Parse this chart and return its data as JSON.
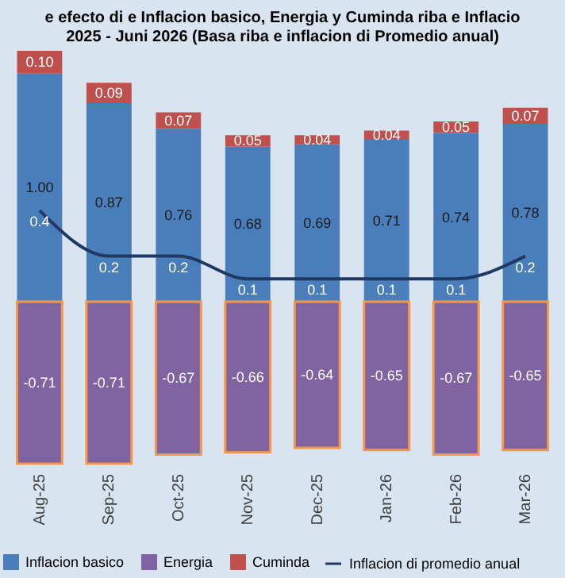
{
  "chart_data": {
    "type": "bar",
    "title": [
      "e efecto di e Inflacion basico, Energia y Cuminda riba e Inflacio",
      "2025 - Juni 2026 (Basa riba e inflacion di Promedio anual)"
    ],
    "categories": [
      "Aug-25",
      "Sep-25",
      "Oct-25",
      "Nov-25",
      "Dec-25",
      "Jan-26",
      "Feb-26",
      "Mar-26"
    ],
    "stacked": true,
    "data_labels": true,
    "grid": false,
    "legend": "bottom",
    "series": [
      {
        "name": "Inflacion basico",
        "color": "#4a7ebb",
        "values": [
          1.0,
          0.87,
          0.76,
          0.68,
          0.69,
          0.71,
          0.74,
          0.78
        ],
        "value_labels": [
          "1.00",
          "0.87",
          "0.76",
          "0.68",
          "0.69",
          "0.71",
          "0.74",
          "0.78"
        ]
      },
      {
        "name": "Energia",
        "color": "#8064a2",
        "values": [
          -0.71,
          -0.71,
          -0.67,
          -0.66,
          -0.64,
          -0.65,
          -0.67,
          -0.65
        ],
        "value_labels": [
          "-0.71",
          "-0.71",
          "-0.67",
          "-0.66",
          "-0.64",
          "-0.65",
          "-0.67",
          "-0.65"
        ]
      },
      {
        "name": "Cuminda",
        "color": "#c0504d",
        "values": [
          0.1,
          0.09,
          0.07,
          0.05,
          0.04,
          0.04,
          0.05,
          0.07
        ],
        "value_labels": [
          "0.10",
          "0.09",
          "0.07",
          "0.05",
          "0.04",
          "0.04",
          "0.05",
          "0.07"
        ]
      },
      {
        "name": "Inflacion di promedio anual",
        "type": "line",
        "color": "#1f3864",
        "values": [
          0.4,
          0.2,
          0.2,
          0.1,
          0.1,
          0.1,
          0.1,
          0.2
        ]
      }
    ]
  }
}
